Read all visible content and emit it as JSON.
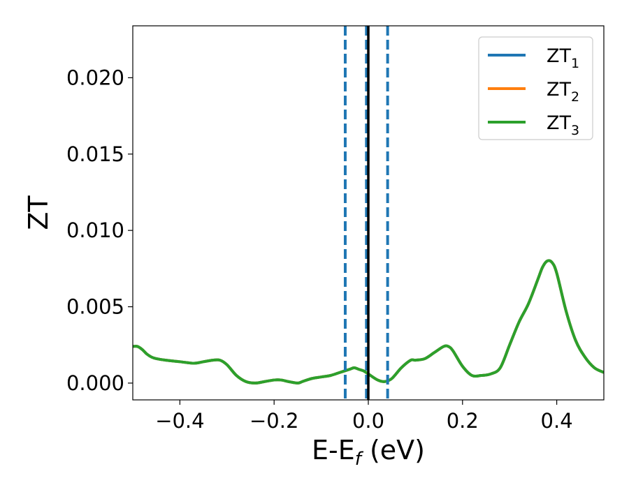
{
  "colors": {
    "zt1": "#1f77b4",
    "zt2": "#ff7f0e",
    "zt3": "#2ca02c",
    "fermi_line": "#000000",
    "window_lines": "#1f77b4"
  },
  "chart_data": {
    "type": "line",
    "title": "",
    "xlabel": "E-E",
    "xlabel_sub": "f",
    "xlabel_unit": " (eV)",
    "ylabel": "ZT",
    "xlim": [
      -0.5,
      0.5
    ],
    "ylim": [
      -0.0011,
      0.0234
    ],
    "grid": false,
    "legend_position": "top-right",
    "xticks": [
      -0.4,
      -0.2,
      0.0,
      0.2,
      0.4
    ],
    "xtick_labels": [
      "−0.4",
      "−0.2",
      "0.0",
      "0.2",
      "0.4"
    ],
    "yticks": [
      0.0,
      0.005,
      0.01,
      0.015,
      0.02
    ],
    "ytick_labels": [
      "0.000",
      "0.005",
      "0.010",
      "0.015",
      "0.020"
    ],
    "vertical_lines": [
      {
        "x": -0.049,
        "style": "dashed",
        "color": "#1f77b4"
      },
      {
        "x": -0.004,
        "style": "dashed",
        "color": "#1f77b4"
      },
      {
        "x": 0.0,
        "style": "solid",
        "color": "#000000"
      },
      {
        "x": 0.041,
        "style": "dashed",
        "color": "#1f77b4"
      }
    ],
    "x": [
      -0.5,
      -0.49,
      -0.48,
      -0.47,
      -0.46,
      -0.45,
      -0.43,
      -0.4,
      -0.37,
      -0.35,
      -0.33,
      -0.315,
      -0.3,
      -0.28,
      -0.26,
      -0.24,
      -0.22,
      -0.2,
      -0.185,
      -0.17,
      -0.15,
      -0.14,
      -0.12,
      -0.1,
      -0.08,
      -0.06,
      -0.04,
      -0.03,
      -0.02,
      -0.01,
      0.0,
      0.02,
      0.035,
      0.05,
      0.07,
      0.09,
      0.1,
      0.12,
      0.14,
      0.16,
      0.17,
      0.18,
      0.2,
      0.22,
      0.24,
      0.26,
      0.28,
      0.3,
      0.32,
      0.34,
      0.36,
      0.37,
      0.38,
      0.39,
      0.4,
      0.42,
      0.44,
      0.46,
      0.48,
      0.5
    ],
    "series": [
      {
        "name": "ZT",
        "name_sub": "1",
        "color_key": "zt1",
        "values": [
          0.0024,
          0.0024,
          0.0022,
          0.0019,
          0.0017,
          0.0016,
          0.0015,
          0.0014,
          0.0013,
          0.0014,
          0.0015,
          0.0015,
          0.0012,
          0.0005,
          0.0001,
          0.0,
          0.0001,
          0.0002,
          0.0002,
          0.0001,
          0.0,
          0.0001,
          0.0003,
          0.0004,
          0.0005,
          0.0007,
          0.0009,
          0.001,
          0.0009,
          0.0008,
          0.0006,
          0.0002,
          0.0001,
          0.0003,
          0.001,
          0.0015,
          0.0015,
          0.0016,
          0.002,
          0.0024,
          0.0024,
          0.0021,
          0.0011,
          0.0005,
          0.0005,
          0.0006,
          0.001,
          0.0025,
          0.004,
          0.0052,
          0.0068,
          0.0076,
          0.008,
          0.0079,
          0.0072,
          0.0047,
          0.0028,
          0.0017,
          0.001,
          0.0007
        ]
      },
      {
        "name": "ZT",
        "name_sub": "2",
        "color_key": "zt2",
        "values": [
          0.0024,
          0.0024,
          0.0022,
          0.0019,
          0.0017,
          0.0016,
          0.0015,
          0.0014,
          0.0013,
          0.0014,
          0.0015,
          0.0015,
          0.0012,
          0.0005,
          0.0001,
          0.0,
          0.0001,
          0.0002,
          0.0002,
          0.0001,
          0.0,
          0.0001,
          0.0003,
          0.0004,
          0.0005,
          0.0007,
          0.0009,
          0.001,
          0.0009,
          0.0008,
          0.0006,
          0.0002,
          0.0001,
          0.0003,
          0.001,
          0.0015,
          0.0015,
          0.0016,
          0.002,
          0.0024,
          0.0024,
          0.0021,
          0.0011,
          0.0005,
          0.0005,
          0.0006,
          0.001,
          0.0025,
          0.004,
          0.0052,
          0.0068,
          0.0076,
          0.008,
          0.0079,
          0.0072,
          0.0047,
          0.0028,
          0.0017,
          0.001,
          0.0007
        ]
      },
      {
        "name": "ZT",
        "name_sub": "3",
        "color_key": "zt3",
        "values": [
          0.0024,
          0.0024,
          0.0022,
          0.0019,
          0.0017,
          0.0016,
          0.0015,
          0.0014,
          0.0013,
          0.0014,
          0.0015,
          0.0015,
          0.0012,
          0.0005,
          0.0001,
          0.0,
          0.0001,
          0.0002,
          0.0002,
          0.0001,
          0.0,
          0.0001,
          0.0003,
          0.0004,
          0.0005,
          0.0007,
          0.0009,
          0.001,
          0.0009,
          0.0008,
          0.0006,
          0.0002,
          0.0001,
          0.0003,
          0.001,
          0.0015,
          0.0015,
          0.0016,
          0.002,
          0.0024,
          0.0024,
          0.0021,
          0.0011,
          0.0005,
          0.0005,
          0.0006,
          0.001,
          0.0025,
          0.004,
          0.0052,
          0.0068,
          0.0076,
          0.008,
          0.0079,
          0.0072,
          0.0047,
          0.0028,
          0.0017,
          0.001,
          0.0007
        ]
      }
    ]
  }
}
